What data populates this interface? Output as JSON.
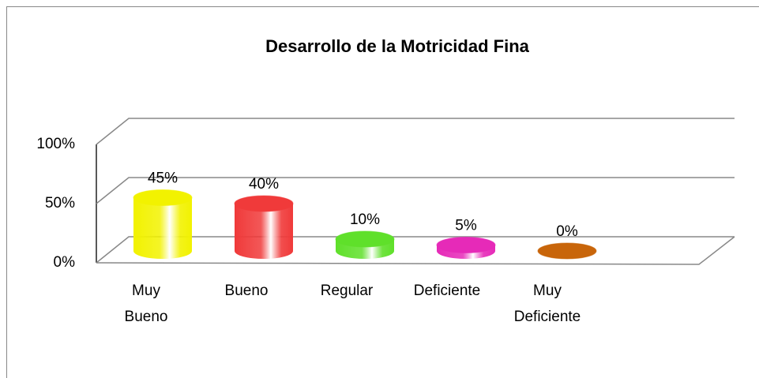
{
  "chart_data": {
    "type": "bar",
    "title": "Desarrollo de la Motricidad Fina",
    "categories": [
      "Muy Bueno",
      "Bueno",
      "Regular",
      "Deficiente",
      "Muy Deficiente"
    ],
    "values": [
      45,
      40,
      10,
      5,
      0
    ],
    "value_labels": [
      "45%",
      "40%",
      "10%",
      "5%",
      "0%"
    ],
    "colors": [
      "#f2f200",
      "#f03a3a",
      "#5fe02a",
      "#e62ab8",
      "#c8650a"
    ],
    "ylim": [
      0,
      100
    ],
    "yticks": [
      {
        "value": 0,
        "label": "0%"
      },
      {
        "value": 50,
        "label": "50%"
      },
      {
        "value": 100,
        "label": "100%"
      }
    ],
    "grid": true
  }
}
